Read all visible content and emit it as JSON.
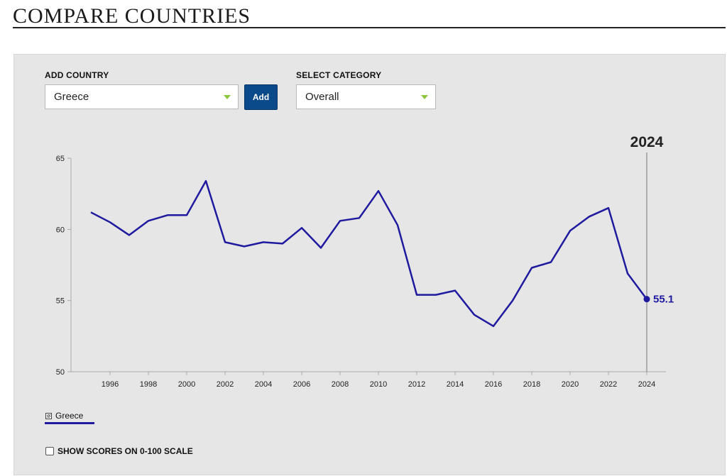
{
  "header": {
    "title": "COMPARE COUNTRIES"
  },
  "controls": {
    "add_country_label": "ADD COUNTRY",
    "country_value": "Greece",
    "add_button": "Add",
    "category_label": "SELECT CATEGORY",
    "category_value": "Overall"
  },
  "legend": {
    "entries": [
      "Greece"
    ]
  },
  "scale_toggle": {
    "label": "SHOW SCORES ON 0-100 SCALE",
    "checked": false
  },
  "colors": {
    "series": "#1f1a9e",
    "accent": "#8cc63f",
    "button": "#0a4a8a"
  },
  "chart_data": {
    "type": "line",
    "title": "",
    "xlabel": "",
    "ylabel": "",
    "ylim": [
      50,
      65
    ],
    "yticks": [
      50,
      55,
      60,
      65
    ],
    "xlim": [
      1995,
      2024
    ],
    "xticks": [
      1996,
      1998,
      2000,
      2002,
      2004,
      2006,
      2008,
      2010,
      2012,
      2014,
      2016,
      2018,
      2020,
      2022,
      2024
    ],
    "grid": false,
    "selected_year": "2024",
    "selected_value_label": "55.1",
    "series": [
      {
        "name": "Greece",
        "x": [
          1995,
          1996,
          1997,
          1998,
          1999,
          2000,
          2001,
          2002,
          2003,
          2004,
          2005,
          2006,
          2007,
          2008,
          2009,
          2010,
          2011,
          2012,
          2013,
          2014,
          2015,
          2016,
          2017,
          2018,
          2019,
          2020,
          2021,
          2022,
          2023,
          2024
        ],
        "values": [
          61.2,
          60.5,
          59.6,
          60.6,
          61.0,
          61.0,
          63.4,
          59.1,
          58.8,
          59.1,
          59.0,
          60.1,
          58.7,
          60.6,
          60.8,
          62.7,
          60.3,
          55.4,
          55.4,
          55.7,
          54.0,
          53.2,
          55.0,
          57.3,
          57.7,
          59.9,
          60.9,
          61.5,
          56.9,
          55.1
        ]
      }
    ]
  }
}
